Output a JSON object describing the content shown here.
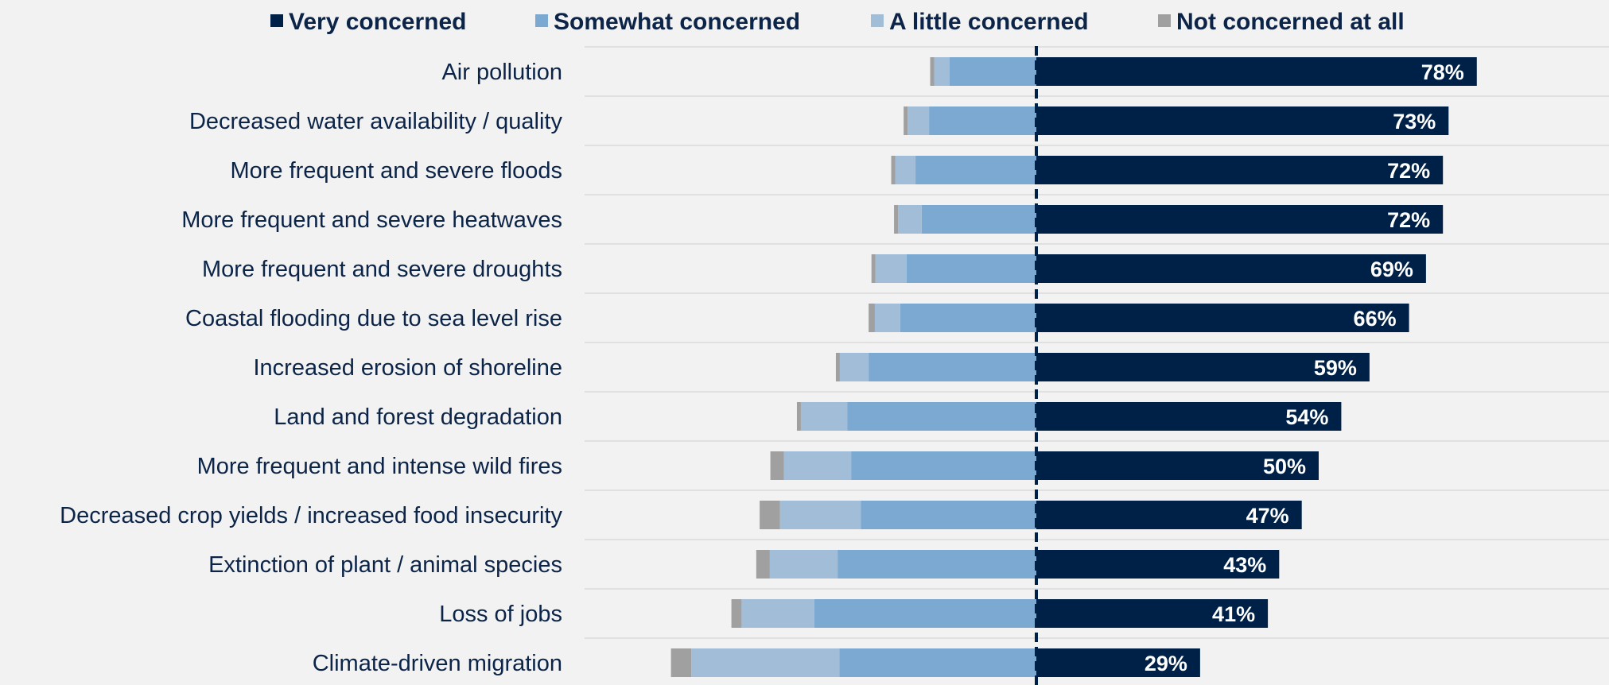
{
  "chart_data": {
    "type": "bar",
    "orientation": "horizontal",
    "stacked": "diverging",
    "legend_position": "top",
    "grid": "horizontal separators",
    "series": [
      {
        "name": "Very concerned",
        "color": "#002147",
        "side": "right"
      },
      {
        "name": "Somewhat concerned",
        "color": "#7ba9d2",
        "side": "left"
      },
      {
        "name": "A little concerned",
        "color": "#a2bdd8",
        "side": "left"
      },
      {
        "name": "Not concerned at all",
        "color": "#a0a0a0",
        "side": "left"
      }
    ],
    "categories": [
      "Air pollution",
      "Decreased water availability / quality",
      "More frequent and severe floods",
      "More frequent and severe heatwaves",
      "More frequent and severe droughts",
      "Coastal flooding due to sea level rise",
      "Increased erosion of shoreline",
      "Land and forest degradation",
      "More frequent and intense wild fires",
      "Decreased crop yields / increased food insecurity",
      "Extinction of plant / animal species",
      "Loss of jobs",
      "Climate-driven migration"
    ],
    "values": {
      "Very concerned": [
        78,
        73,
        72,
        72,
        69,
        66,
        59,
        54,
        50,
        47,
        43,
        41,
        29
      ],
      "Somewhat concerned": [
        15.4,
        19,
        21.4,
        20.3,
        23,
        24.1,
        29.7,
        33.5,
        32.8,
        31.1,
        35.2,
        39.3,
        34.9
      ],
      "A little concerned": [
        2.7,
        3.8,
        3.6,
        4.2,
        5.5,
        4.5,
        5.1,
        8.2,
        11.9,
        14.3,
        12,
        12.9,
        26.2
      ],
      "Not concerned at all": [
        0.7,
        0.7,
        0.7,
        0.7,
        0.7,
        1.1,
        0.7,
        0.7,
        2.4,
        3.6,
        2.4,
        1.8,
        3.6
      ]
    },
    "value_labels": [
      "78%",
      "73%",
      "72%",
      "72%",
      "69%",
      "66%",
      "59%",
      "54%",
      "50%",
      "47%",
      "43%",
      "41%",
      "29%"
    ]
  }
}
